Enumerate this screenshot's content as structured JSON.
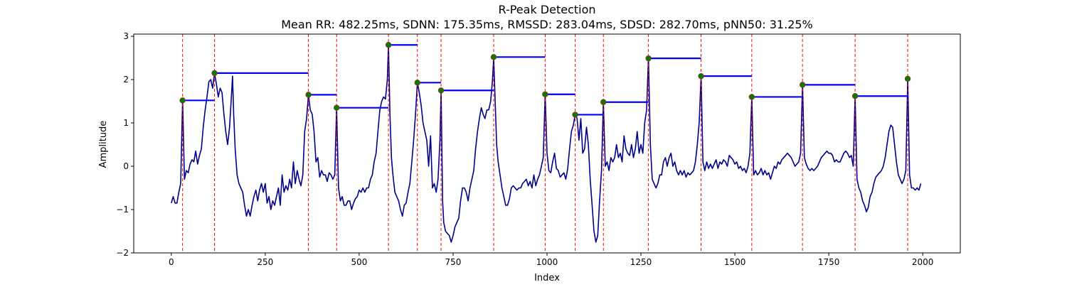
{
  "chart_data": {
    "type": "line",
    "title": "R-Peak Detection",
    "subtitle": "Mean RR: 482.25ms, SDNN: 175.35ms, RMSSD: 283.04ms, SDSD: 282.70ms, pNN50: 31.25%",
    "xlabel": "Index",
    "ylabel": "Amplitude",
    "xlim": [
      -100,
      2100
    ],
    "ylim": [
      -2.0,
      3.05
    ],
    "x_ticks": [
      0,
      250,
      500,
      750,
      1000,
      1250,
      1500,
      1750,
      2000
    ],
    "y_ticks": [
      -2,
      -1,
      0,
      1,
      2,
      3
    ],
    "grid": false,
    "colors": {
      "signal": "#00008b",
      "peak_line": "#ff0000",
      "rr_segment": "#0000ff",
      "peak_marker_fill": "#008000",
      "peak_marker_edge": "#b22222"
    },
    "signal_points": [
      [
        0,
        -0.85
      ],
      [
        5,
        -0.7
      ],
      [
        10,
        -0.85
      ],
      [
        15,
        -0.85
      ],
      [
        20,
        -0.6
      ],
      [
        25,
        -0.4
      ],
      [
        30,
        1.52
      ],
      [
        35,
        -0.3
      ],
      [
        40,
        -0.1
      ],
      [
        45,
        -0.15
      ],
      [
        50,
        0.05
      ],
      [
        55,
        0.15
      ],
      [
        60,
        0.1
      ],
      [
        65,
        0.35
      ],
      [
        70,
        0.05
      ],
      [
        75,
        0.25
      ],
      [
        80,
        0.4
      ],
      [
        85,
        0.9
      ],
      [
        90,
        1.3
      ],
      [
        95,
        1.6
      ],
      [
        100,
        1.95
      ],
      [
        105,
        2.0
      ],
      [
        110,
        1.8
      ],
      [
        115,
        2.15
      ],
      [
        120,
        1.9
      ],
      [
        125,
        1.6
      ],
      [
        130,
        1.8
      ],
      [
        135,
        1.7
      ],
      [
        140,
        1.2
      ],
      [
        145,
        0.8
      ],
      [
        150,
        0.5
      ],
      [
        155,
        0.9
      ],
      [
        160,
        1.6
      ],
      [
        163,
        2.08
      ],
      [
        166,
        1.2
      ],
      [
        170,
        0.4
      ],
      [
        175,
        -0.2
      ],
      [
        180,
        -0.4
      ],
      [
        185,
        -0.5
      ],
      [
        190,
        -0.6
      ],
      [
        195,
        -0.9
      ],
      [
        200,
        -1.15
      ],
      [
        205,
        -1.0
      ],
      [
        210,
        -1.15
      ],
      [
        215,
        -0.9
      ],
      [
        220,
        -0.7
      ],
      [
        225,
        -0.55
      ],
      [
        230,
        -0.8
      ],
      [
        235,
        -0.55
      ],
      [
        240,
        -0.4
      ],
      [
        245,
        -0.6
      ],
      [
        250,
        -0.4
      ],
      [
        255,
        -0.85
      ],
      [
        260,
        -0.7
      ],
      [
        265,
        -1.0
      ],
      [
        270,
        -0.8
      ],
      [
        275,
        -0.9
      ],
      [
        280,
        -0.7
      ],
      [
        285,
        -0.5
      ],
      [
        290,
        -0.9
      ],
      [
        295,
        -0.2
      ],
      [
        300,
        -0.6
      ],
      [
        305,
        -0.45
      ],
      [
        310,
        -0.55
      ],
      [
        315,
        -0.3
      ],
      [
        320,
        -0.5
      ],
      [
        325,
        0.1
      ],
      [
        330,
        -0.4
      ],
      [
        335,
        -0.1
      ],
      [
        340,
        -0.3
      ],
      [
        345,
        -0.45
      ],
      [
        350,
        -0.2
      ],
      [
        355,
        0.8
      ],
      [
        360,
        1.1
      ],
      [
        365,
        1.65
      ],
      [
        370,
        1.3
      ],
      [
        375,
        1.2
      ],
      [
        380,
        0.8
      ],
      [
        385,
        0.1
      ],
      [
        390,
        0.2
      ],
      [
        395,
        -0.25
      ],
      [
        400,
        -0.1
      ],
      [
        405,
        -0.2
      ],
      [
        410,
        -0.2
      ],
      [
        415,
        -0.35
      ],
      [
        420,
        -0.15
      ],
      [
        425,
        -0.2
      ],
      [
        430,
        -0.3
      ],
      [
        435,
        -0.2
      ],
      [
        440,
        1.35
      ],
      [
        445,
        -0.5
      ],
      [
        450,
        -0.8
      ],
      [
        455,
        -0.7
      ],
      [
        460,
        -0.9
      ],
      [
        465,
        -0.9
      ],
      [
        470,
        -0.8
      ],
      [
        475,
        -0.8
      ],
      [
        480,
        -1.0
      ],
      [
        485,
        -0.85
      ],
      [
        490,
        -0.75
      ],
      [
        495,
        -0.7
      ],
      [
        500,
        -0.55
      ],
      [
        505,
        -0.6
      ],
      [
        510,
        -0.5
      ],
      [
        515,
        -0.6
      ],
      [
        520,
        -0.5
      ],
      [
        525,
        -0.5
      ],
      [
        530,
        -0.3
      ],
      [
        535,
        -0.2
      ],
      [
        540,
        0.1
      ],
      [
        545,
        0.3
      ],
      [
        550,
        0.8
      ],
      [
        555,
        1.3
      ],
      [
        560,
        1.5
      ],
      [
        565,
        1.6
      ],
      [
        570,
        1.55
      ],
      [
        575,
        2.0
      ],
      [
        578,
        2.8
      ],
      [
        582,
        1.2
      ],
      [
        586,
        0.2
      ],
      [
        590,
        -0.2
      ],
      [
        595,
        -0.6
      ],
      [
        600,
        -0.7
      ],
      [
        605,
        -0.8
      ],
      [
        610,
        -1.0
      ],
      [
        615,
        -1.15
      ],
      [
        620,
        -0.9
      ],
      [
        625,
        -0.85
      ],
      [
        630,
        -0.6
      ],
      [
        635,
        -0.4
      ],
      [
        640,
        0.1
      ],
      [
        645,
        0.6
      ],
      [
        650,
        1.2
      ],
      [
        655,
        1.93
      ],
      [
        660,
        1.7
      ],
      [
        665,
        1.4
      ],
      [
        670,
        1.0
      ],
      [
        675,
        0.8
      ],
      [
        680,
        0.6
      ],
      [
        685,
        0.0
      ],
      [
        690,
        0.7
      ],
      [
        695,
        -0.5
      ],
      [
        700,
        -0.4
      ],
      [
        705,
        -0.6
      ],
      [
        710,
        -0.3
      ],
      [
        715,
        0.6
      ],
      [
        718,
        1.75
      ],
      [
        722,
        -0.8
      ],
      [
        725,
        -1.3
      ],
      [
        730,
        -1.5
      ],
      [
        735,
        -1.55
      ],
      [
        740,
        -1.6
      ],
      [
        745,
        -1.75
      ],
      [
        750,
        -1.6
      ],
      [
        755,
        -1.4
      ],
      [
        760,
        -1.3
      ],
      [
        765,
        -1.2
      ],
      [
        770,
        -0.8
      ],
      [
        775,
        -0.5
      ],
      [
        780,
        -0.5
      ],
      [
        785,
        -0.6
      ],
      [
        790,
        -0.8
      ],
      [
        795,
        -0.5
      ],
      [
        800,
        -0.3
      ],
      [
        805,
        -0.1
      ],
      [
        810,
        0.4
      ],
      [
        815,
        0.8
      ],
      [
        820,
        1.1
      ],
      [
        825,
        1.35
      ],
      [
        830,
        1.2
      ],
      [
        835,
        1.1
      ],
      [
        840,
        1.3
      ],
      [
        845,
        1.3
      ],
      [
        850,
        1.5
      ],
      [
        855,
        2.0
      ],
      [
        858,
        2.52
      ],
      [
        862,
        1.5
      ],
      [
        866,
        0.5
      ],
      [
        870,
        0.1
      ],
      [
        875,
        -0.2
      ],
      [
        880,
        -0.5
      ],
      [
        885,
        -0.7
      ],
      [
        890,
        -0.9
      ],
      [
        895,
        -0.9
      ],
      [
        900,
        -0.75
      ],
      [
        905,
        -0.5
      ],
      [
        910,
        -0.45
      ],
      [
        915,
        -0.5
      ],
      [
        920,
        -0.55
      ],
      [
        925,
        -0.5
      ],
      [
        930,
        -0.5
      ],
      [
        935,
        -0.4
      ],
      [
        940,
        -0.35
      ],
      [
        945,
        -0.3
      ],
      [
        950,
        -0.45
      ],
      [
        955,
        -0.35
      ],
      [
        960,
        -0.5
      ],
      [
        965,
        -0.2
      ],
      [
        970,
        -0.45
      ],
      [
        975,
        -0.3
      ],
      [
        980,
        -0.2
      ],
      [
        985,
        0.0
      ],
      [
        990,
        0.2
      ],
      [
        995,
        1.66
      ],
      [
        1000,
        0.3
      ],
      [
        1005,
        -0.1
      ],
      [
        1010,
        -0.15
      ],
      [
        1015,
        0.1
      ],
      [
        1020,
        0.3
      ],
      [
        1025,
        -0.05
      ],
      [
        1030,
        -0.1
      ],
      [
        1035,
        -0.25
      ],
      [
        1040,
        -0.2
      ],
      [
        1045,
        -0.15
      ],
      [
        1050,
        -0.3
      ],
      [
        1055,
        -0.05
      ],
      [
        1060,
        0.4
      ],
      [
        1065,
        0.8
      ],
      [
        1070,
        0.95
      ],
      [
        1075,
        1.19
      ],
      [
        1080,
        1.1
      ],
      [
        1085,
        0.6
      ],
      [
        1090,
        1.1
      ],
      [
        1095,
        0.3
      ],
      [
        1100,
        0.4
      ],
      [
        1105,
        0.9
      ],
      [
        1110,
        0.5
      ],
      [
        1115,
        -0.3
      ],
      [
        1120,
        -0.9
      ],
      [
        1125,
        -1.5
      ],
      [
        1130,
        -1.75
      ],
      [
        1135,
        -1.6
      ],
      [
        1140,
        -0.8
      ],
      [
        1145,
        -0.1
      ],
      [
        1150,
        1.48
      ],
      [
        1155,
        0.0
      ],
      [
        1160,
        0.1
      ],
      [
        1165,
        -0.1
      ],
      [
        1170,
        0.2
      ],
      [
        1175,
        0.1
      ],
      [
        1180,
        0.2
      ],
      [
        1185,
        0.5
      ],
      [
        1190,
        0.2
      ],
      [
        1195,
        0.3
      ],
      [
        1200,
        0.1
      ],
      [
        1205,
        0.7
      ],
      [
        1210,
        0.4
      ],
      [
        1215,
        0.3
      ],
      [
        1220,
        0.25
      ],
      [
        1225,
        0.5
      ],
      [
        1230,
        0.2
      ],
      [
        1235,
        0.4
      ],
      [
        1240,
        0.8
      ],
      [
        1245,
        0.3
      ],
      [
        1250,
        0.5
      ],
      [
        1255,
        0.3
      ],
      [
        1260,
        1.0
      ],
      [
        1265,
        1.3
      ],
      [
        1270,
        2.49
      ],
      [
        1275,
        0.5
      ],
      [
        1280,
        -0.3
      ],
      [
        1285,
        -0.4
      ],
      [
        1290,
        -0.5
      ],
      [
        1295,
        -0.4
      ],
      [
        1300,
        -0.2
      ],
      [
        1305,
        -0.2
      ],
      [
        1310,
        0.1
      ],
      [
        1315,
        0.2
      ],
      [
        1320,
        0.0
      ],
      [
        1325,
        0.2
      ],
      [
        1330,
        0.3
      ],
      [
        1335,
        0.0
      ],
      [
        1340,
        0.1
      ],
      [
        1345,
        -0.1
      ],
      [
        1350,
        -0.2
      ],
      [
        1355,
        -0.1
      ],
      [
        1360,
        -0.2
      ],
      [
        1365,
        -0.1
      ],
      [
        1370,
        -0.25
      ],
      [
        1375,
        -0.15
      ],
      [
        1380,
        -0.2
      ],
      [
        1385,
        -0.15
      ],
      [
        1390,
        -0.1
      ],
      [
        1395,
        0.1
      ],
      [
        1400,
        0.5
      ],
      [
        1405,
        1.0
      ],
      [
        1410,
        2.08
      ],
      [
        1415,
        0.1
      ],
      [
        1420,
        -0.1
      ],
      [
        1425,
        0.1
      ],
      [
        1430,
        -0.05
      ],
      [
        1435,
        0.05
      ],
      [
        1440,
        -0.05
      ],
      [
        1445,
        0.05
      ],
      [
        1450,
        0.15
      ],
      [
        1455,
        -0.05
      ],
      [
        1460,
        0.1
      ],
      [
        1465,
        0.05
      ],
      [
        1470,
        0.15
      ],
      [
        1475,
        0.1
      ],
      [
        1480,
        0.0
      ],
      [
        1485,
        0.25
      ],
      [
        1490,
        0.2
      ],
      [
        1495,
        0.15
      ],
      [
        1500,
        0.05
      ],
      [
        1505,
        0.1
      ],
      [
        1510,
        -0.05
      ],
      [
        1515,
        0.0
      ],
      [
        1520,
        -0.1
      ],
      [
        1525,
        -0.05
      ],
      [
        1530,
        -0.15
      ],
      [
        1535,
        0.0
      ],
      [
        1540,
        0.3
      ],
      [
        1545,
        1.6
      ],
      [
        1550,
        -0.2
      ],
      [
        1555,
        -0.1
      ],
      [
        1560,
        -0.2
      ],
      [
        1565,
        -0.15
      ],
      [
        1570,
        -0.05
      ],
      [
        1575,
        -0.2
      ],
      [
        1580,
        -0.1
      ],
      [
        1585,
        -0.2
      ],
      [
        1590,
        -0.15
      ],
      [
        1595,
        -0.3
      ],
      [
        1600,
        -0.15
      ],
      [
        1605,
        0.0
      ],
      [
        1610,
        -0.05
      ],
      [
        1615,
        0.1
      ],
      [
        1620,
        0.05
      ],
      [
        1625,
        0.15
      ],
      [
        1630,
        0.2
      ],
      [
        1635,
        0.25
      ],
      [
        1640,
        0.3
      ],
      [
        1645,
        0.25
      ],
      [
        1650,
        0.2
      ],
      [
        1655,
        0.1
      ],
      [
        1660,
        0.0
      ],
      [
        1665,
        0.05
      ],
      [
        1670,
        0.1
      ],
      [
        1675,
        0.3
      ],
      [
        1680,
        1.88
      ],
      [
        1685,
        0.2
      ],
      [
        1690,
        0.05
      ],
      [
        1695,
        -0.05
      ],
      [
        1700,
        -0.1
      ],
      [
        1705,
        -0.05
      ],
      [
        1710,
        -0.1
      ],
      [
        1715,
        -0.05
      ],
      [
        1720,
        0.0
      ],
      [
        1725,
        0.1
      ],
      [
        1730,
        0.2
      ],
      [
        1735,
        0.25
      ],
      [
        1740,
        0.3
      ],
      [
        1745,
        0.35
      ],
      [
        1750,
        0.3
      ],
      [
        1755,
        0.3
      ],
      [
        1760,
        0.25
      ],
      [
        1765,
        0.1
      ],
      [
        1770,
        0.15
      ],
      [
        1775,
        0.1
      ],
      [
        1780,
        0.1
      ],
      [
        1785,
        0.2
      ],
      [
        1790,
        0.3
      ],
      [
        1795,
        0.35
      ],
      [
        1800,
        0.3
      ],
      [
        1805,
        0.2
      ],
      [
        1810,
        0.25
      ],
      [
        1815,
        0.0
      ],
      [
        1820,
        1.62
      ],
      [
        1825,
        -0.3
      ],
      [
        1830,
        -0.5
      ],
      [
        1835,
        -0.6
      ],
      [
        1840,
        -0.8
      ],
      [
        1845,
        -0.9
      ],
      [
        1850,
        -1.05
      ],
      [
        1855,
        -0.95
      ],
      [
        1860,
        -0.7
      ],
      [
        1865,
        -0.6
      ],
      [
        1870,
        -0.4
      ],
      [
        1875,
        -0.25
      ],
      [
        1880,
        -0.2
      ],
      [
        1885,
        -0.15
      ],
      [
        1890,
        -0.1
      ],
      [
        1895,
        0.0
      ],
      [
        1900,
        0.2
      ],
      [
        1905,
        0.5
      ],
      [
        1910,
        0.8
      ],
      [
        1915,
        0.95
      ],
      [
        1920,
        0.9
      ],
      [
        1925,
        0.5
      ],
      [
        1930,
        0.1
      ],
      [
        1935,
        -0.2
      ],
      [
        1940,
        -0.3
      ],
      [
        1945,
        -0.4
      ],
      [
        1950,
        -0.3
      ],
      [
        1955,
        -0.1
      ],
      [
        1960,
        2.02
      ],
      [
        1965,
        -0.2
      ],
      [
        1970,
        -0.5
      ],
      [
        1975,
        -0.5
      ],
      [
        1980,
        -0.55
      ],
      [
        1985,
        -0.5
      ],
      [
        1990,
        -0.55
      ],
      [
        1995,
        -0.4
      ]
    ],
    "peaks": [
      {
        "x": 30,
        "y": 1.52
      },
      {
        "x": 115,
        "y": 2.15
      },
      {
        "x": 365,
        "y": 1.65
      },
      {
        "x": 440,
        "y": 1.35
      },
      {
        "x": 578,
        "y": 2.8
      },
      {
        "x": 655,
        "y": 1.93
      },
      {
        "x": 718,
        "y": 1.75
      },
      {
        "x": 858,
        "y": 2.52
      },
      {
        "x": 995,
        "y": 1.66
      },
      {
        "x": 1075,
        "y": 1.19
      },
      {
        "x": 1150,
        "y": 1.48
      },
      {
        "x": 1270,
        "y": 2.49
      },
      {
        "x": 1410,
        "y": 2.08
      },
      {
        "x": 1545,
        "y": 1.6
      },
      {
        "x": 1680,
        "y": 1.88
      },
      {
        "x": 1820,
        "y": 1.62
      },
      {
        "x": 1960,
        "y": 2.02
      }
    ]
  }
}
